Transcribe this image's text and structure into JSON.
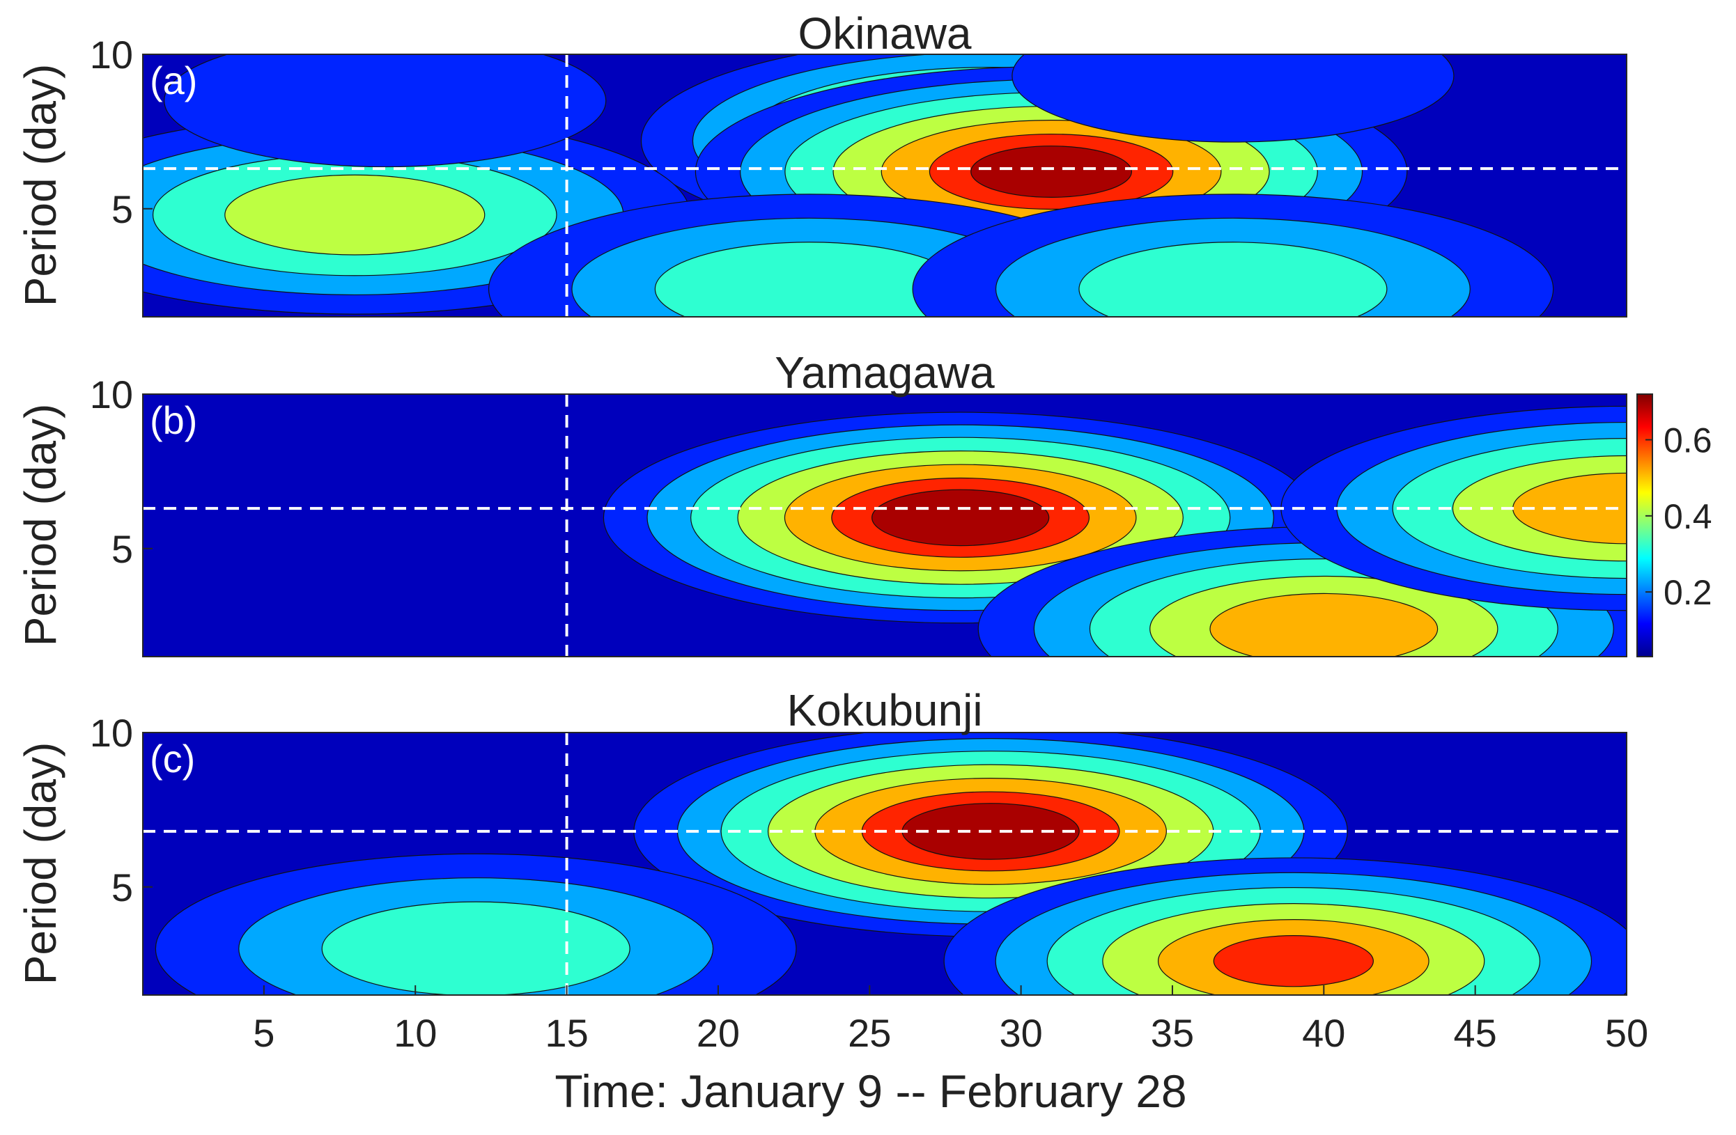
{
  "chart_data": [
    {
      "type": "heatmap",
      "panel_label": "(a)",
      "title": "Okinawa",
      "ylabel": "Period (day)",
      "y_ticks": [
        5,
        10
      ],
      "ylim": [
        1.5,
        10
      ],
      "xlim": [
        1,
        50
      ],
      "grid": false,
      "reference_lines": {
        "x": 15,
        "y": 6.3
      },
      "peaks": [
        {
          "x": 29,
          "y": 7.2,
          "value": 0.6
        },
        {
          "x": 31,
          "y": 6.2,
          "value": 0.7
        },
        {
          "x": 8,
          "y": 4.8,
          "value": 0.45
        },
        {
          "x": 23,
          "y": 2.4,
          "value": 0.35
        },
        {
          "x": 37,
          "y": 2.4,
          "value": 0.35
        },
        {
          "x": 9,
          "y": 8.5,
          "value": 0.12
        },
        {
          "x": 37,
          "y": 9.3,
          "value": 0.12
        }
      ]
    },
    {
      "type": "heatmap",
      "panel_label": "(b)",
      "title": "Yamagawa",
      "ylabel": "Period (day)",
      "y_ticks": [
        5,
        10
      ],
      "ylim": [
        1.5,
        10
      ],
      "xlim": [
        1,
        50
      ],
      "grid": false,
      "reference_lines": {
        "x": 15,
        "y": 6.3
      },
      "peaks": [
        {
          "x": 28,
          "y": 6.0,
          "value": 0.72
        },
        {
          "x": 40,
          "y": 2.4,
          "value": 0.55
        },
        {
          "x": 50,
          "y": 6.3,
          "value": 0.55
        }
      ],
      "colorbar": {
        "ticks": [
          0.2,
          0.4,
          0.6
        ],
        "range": [
          0.03,
          0.72
        ],
        "colormap": "jet"
      }
    },
    {
      "type": "heatmap",
      "panel_label": "(c)",
      "title": "Kokubunji",
      "ylabel": "Period (day)",
      "y_ticks": [
        5,
        10
      ],
      "ylim": [
        1.5,
        10
      ],
      "xlim": [
        1,
        50
      ],
      "grid": false,
      "reference_lines": {
        "x": 15,
        "y": 6.8
      },
      "peaks": [
        {
          "x": 29,
          "y": 6.8,
          "value": 0.72
        },
        {
          "x": 39,
          "y": 2.6,
          "value": 0.6
        },
        {
          "x": 12,
          "y": 3.0,
          "value": 0.35
        }
      ],
      "x_ticks": [
        5,
        10,
        15,
        20,
        25,
        30,
        35,
        40,
        45,
        50
      ],
      "xlabel": "Time: January 9 -- February 28"
    }
  ]
}
